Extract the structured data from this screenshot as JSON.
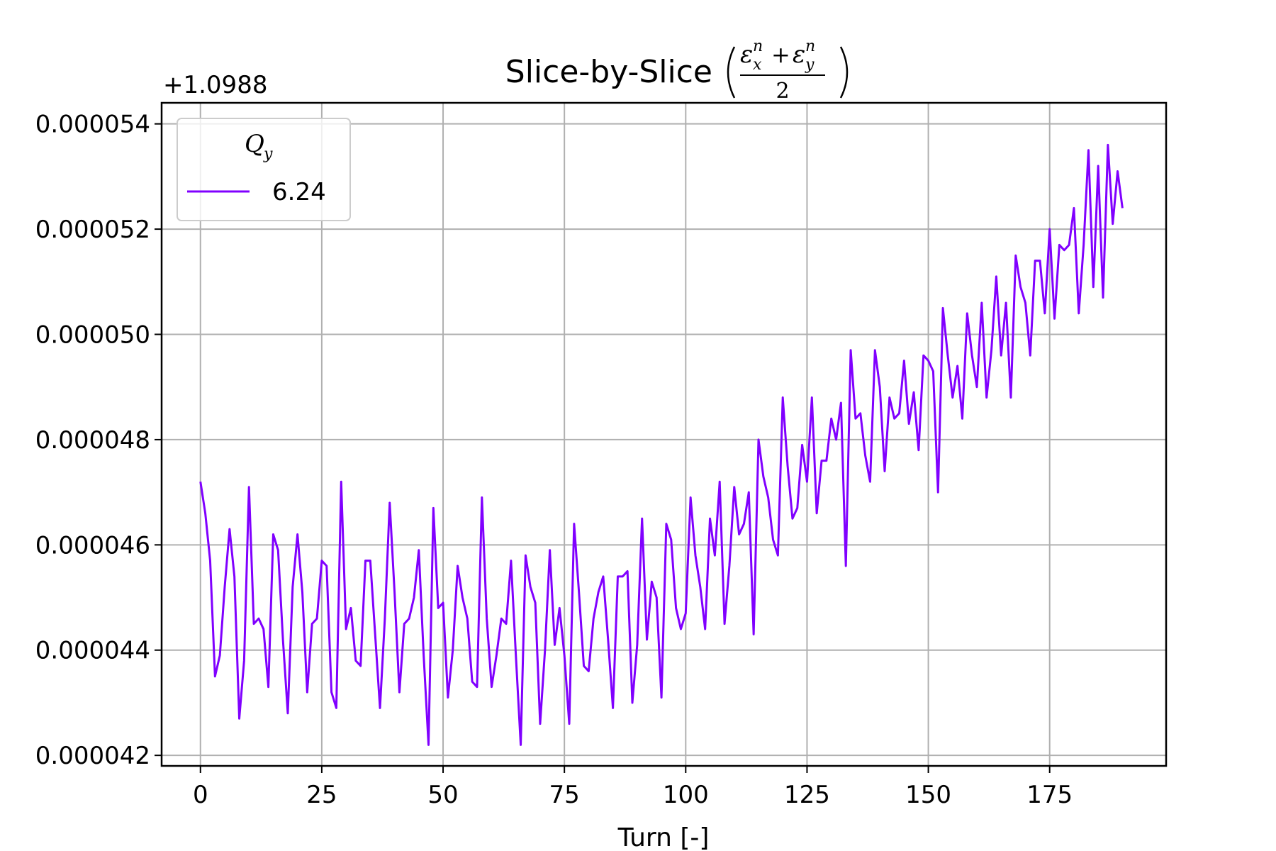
{
  "chart_data": {
    "type": "line",
    "title_text": "Slice-by-Slice",
    "title_math": {
      "numerator_left": "ε",
      "numerator_left_sub": "x",
      "numerator_left_sup": "n",
      "operator": "+",
      "numerator_right": "ε",
      "numerator_right_sub": "y",
      "numerator_right_sup": "n",
      "denominator": "2"
    },
    "xlabel": "Turn [-]",
    "ylabel": "",
    "y_offset_label": "+1.0988",
    "xlim": [
      -8,
      199
    ],
    "ylim": [
      4.18e-05,
      5.44e-05
    ],
    "xticks": [
      0,
      25,
      50,
      75,
      100,
      125,
      150,
      175
    ],
    "xtick_labels": [
      "0",
      "25",
      "50",
      "75",
      "100",
      "125",
      "150",
      "175"
    ],
    "yticks": [
      4.2e-05,
      4.4e-05,
      4.6e-05,
      4.8e-05,
      5e-05,
      5.2e-05,
      5.4e-05
    ],
    "ytick_labels": [
      "0.000042",
      "0.000044",
      "0.000046",
      "0.000048",
      "0.000050",
      "0.000052",
      "0.000054"
    ],
    "grid": true,
    "legend": {
      "placement": "top-left",
      "title": "Q",
      "title_sub": "y"
    },
    "series": [
      {
        "name": "6.24",
        "color": "#8000ff",
        "x": [
          0,
          1,
          2,
          3,
          4,
          5,
          6,
          7,
          8,
          9,
          10,
          11,
          12,
          13,
          14,
          15,
          16,
          17,
          18,
          19,
          20,
          21,
          22,
          23,
          24,
          25,
          26,
          27,
          28,
          29,
          30,
          31,
          32,
          33,
          34,
          35,
          36,
          37,
          38,
          39,
          40,
          41,
          42,
          43,
          44,
          45,
          46,
          47,
          48,
          49,
          50,
          51,
          52,
          53,
          54,
          55,
          56,
          57,
          58,
          59,
          60,
          61,
          62,
          63,
          64,
          65,
          66,
          67,
          68,
          69,
          70,
          71,
          72,
          73,
          74,
          75,
          76,
          77,
          78,
          79,
          80,
          81,
          82,
          83,
          84,
          85,
          86,
          87,
          88,
          89,
          90,
          91,
          92,
          93,
          94,
          95,
          96,
          97,
          98,
          99,
          100,
          101,
          102,
          103,
          104,
          105,
          106,
          107,
          108,
          109,
          110,
          111,
          112,
          113,
          114,
          115,
          116,
          117,
          118,
          119,
          120,
          121,
          122,
          123,
          124,
          125,
          126,
          127,
          128,
          129,
          130,
          131,
          132,
          133,
          134,
          135,
          136,
          137,
          138,
          139,
          140,
          141,
          142,
          143,
          144,
          145,
          146,
          147,
          148,
          149,
          150,
          151,
          152,
          153,
          154,
          155,
          156,
          157,
          158,
          159,
          160,
          161,
          162,
          163,
          164,
          165,
          166,
          167,
          168,
          169,
          170,
          171,
          172,
          173,
          174,
          175,
          176,
          177,
          178,
          179,
          180,
          181,
          182,
          183,
          184,
          185,
          186,
          187,
          188,
          189,
          190
        ],
        "values": [
          4.72e-05,
          4.66e-05,
          4.57e-05,
          4.35e-05,
          4.39e-05,
          4.52e-05,
          4.63e-05,
          4.54e-05,
          4.27e-05,
          4.38e-05,
          4.71e-05,
          4.45e-05,
          4.46e-05,
          4.44e-05,
          4.33e-05,
          4.62e-05,
          4.59e-05,
          4.42e-05,
          4.28e-05,
          4.52e-05,
          4.62e-05,
          4.51e-05,
          4.32e-05,
          4.45e-05,
          4.46e-05,
          4.57e-05,
          4.56e-05,
          4.32e-05,
          4.29e-05,
          4.72e-05,
          4.44e-05,
          4.48e-05,
          4.38e-05,
          4.37e-05,
          4.57e-05,
          4.57e-05,
          4.43e-05,
          4.29e-05,
          4.46e-05,
          4.68e-05,
          4.51e-05,
          4.32e-05,
          4.45e-05,
          4.46e-05,
          4.5e-05,
          4.59e-05,
          4.39e-05,
          4.22e-05,
          4.67e-05,
          4.48e-05,
          4.49e-05,
          4.31e-05,
          4.4e-05,
          4.56e-05,
          4.5e-05,
          4.46e-05,
          4.34e-05,
          4.33e-05,
          4.69e-05,
          4.46e-05,
          4.33e-05,
          4.39e-05,
          4.46e-05,
          4.45e-05,
          4.57e-05,
          4.39e-05,
          4.22e-05,
          4.58e-05,
          4.52e-05,
          4.49e-05,
          4.26e-05,
          4.4e-05,
          4.59e-05,
          4.41e-05,
          4.48e-05,
          4.39e-05,
          4.26e-05,
          4.64e-05,
          4.51e-05,
          4.37e-05,
          4.36e-05,
          4.46e-05,
          4.51e-05,
          4.54e-05,
          4.42e-05,
          4.29e-05,
          4.54e-05,
          4.54e-05,
          4.55e-05,
          4.3e-05,
          4.41e-05,
          4.65e-05,
          4.42e-05,
          4.53e-05,
          4.5e-05,
          4.31e-05,
          4.64e-05,
          4.61e-05,
          4.48e-05,
          4.44e-05,
          4.47e-05,
          4.69e-05,
          4.58e-05,
          4.52e-05,
          4.44e-05,
          4.65e-05,
          4.58e-05,
          4.72e-05,
          4.45e-05,
          4.56e-05,
          4.71e-05,
          4.62e-05,
          4.64e-05,
          4.7e-05,
          4.43e-05,
          4.8e-05,
          4.73e-05,
          4.69e-05,
          4.61e-05,
          4.58e-05,
          4.88e-05,
          4.75e-05,
          4.65e-05,
          4.67e-05,
          4.79e-05,
          4.72e-05,
          4.88e-05,
          4.66e-05,
          4.76e-05,
          4.76e-05,
          4.84e-05,
          4.8e-05,
          4.87e-05,
          4.56e-05,
          4.97e-05,
          4.84e-05,
          4.85e-05,
          4.77e-05,
          4.72e-05,
          4.97e-05,
          4.9e-05,
          4.74e-05,
          4.88e-05,
          4.84e-05,
          4.85e-05,
          4.95e-05,
          4.83e-05,
          4.89e-05,
          4.78e-05,
          4.96e-05,
          4.95e-05,
          4.93e-05,
          4.7e-05,
          5.05e-05,
          4.96e-05,
          4.88e-05,
          4.94e-05,
          4.84e-05,
          5.04e-05,
          4.96e-05,
          4.9e-05,
          5.06e-05,
          4.88e-05,
          4.97e-05,
          5.11e-05,
          4.96e-05,
          5.06e-05,
          4.88e-05,
          5.15e-05,
          5.09e-05,
          5.06e-05,
          4.96e-05,
          5.14e-05,
          5.14e-05,
          5.04e-05,
          5.2e-05,
          5.03e-05,
          5.17e-05,
          5.16e-05,
          5.17e-05,
          5.24e-05,
          5.04e-05,
          5.17e-05,
          5.35e-05,
          5.09e-05,
          5.32e-05,
          5.07e-05,
          5.36e-05,
          5.21e-05,
          5.31e-05,
          5.24e-05
        ]
      }
    ]
  }
}
